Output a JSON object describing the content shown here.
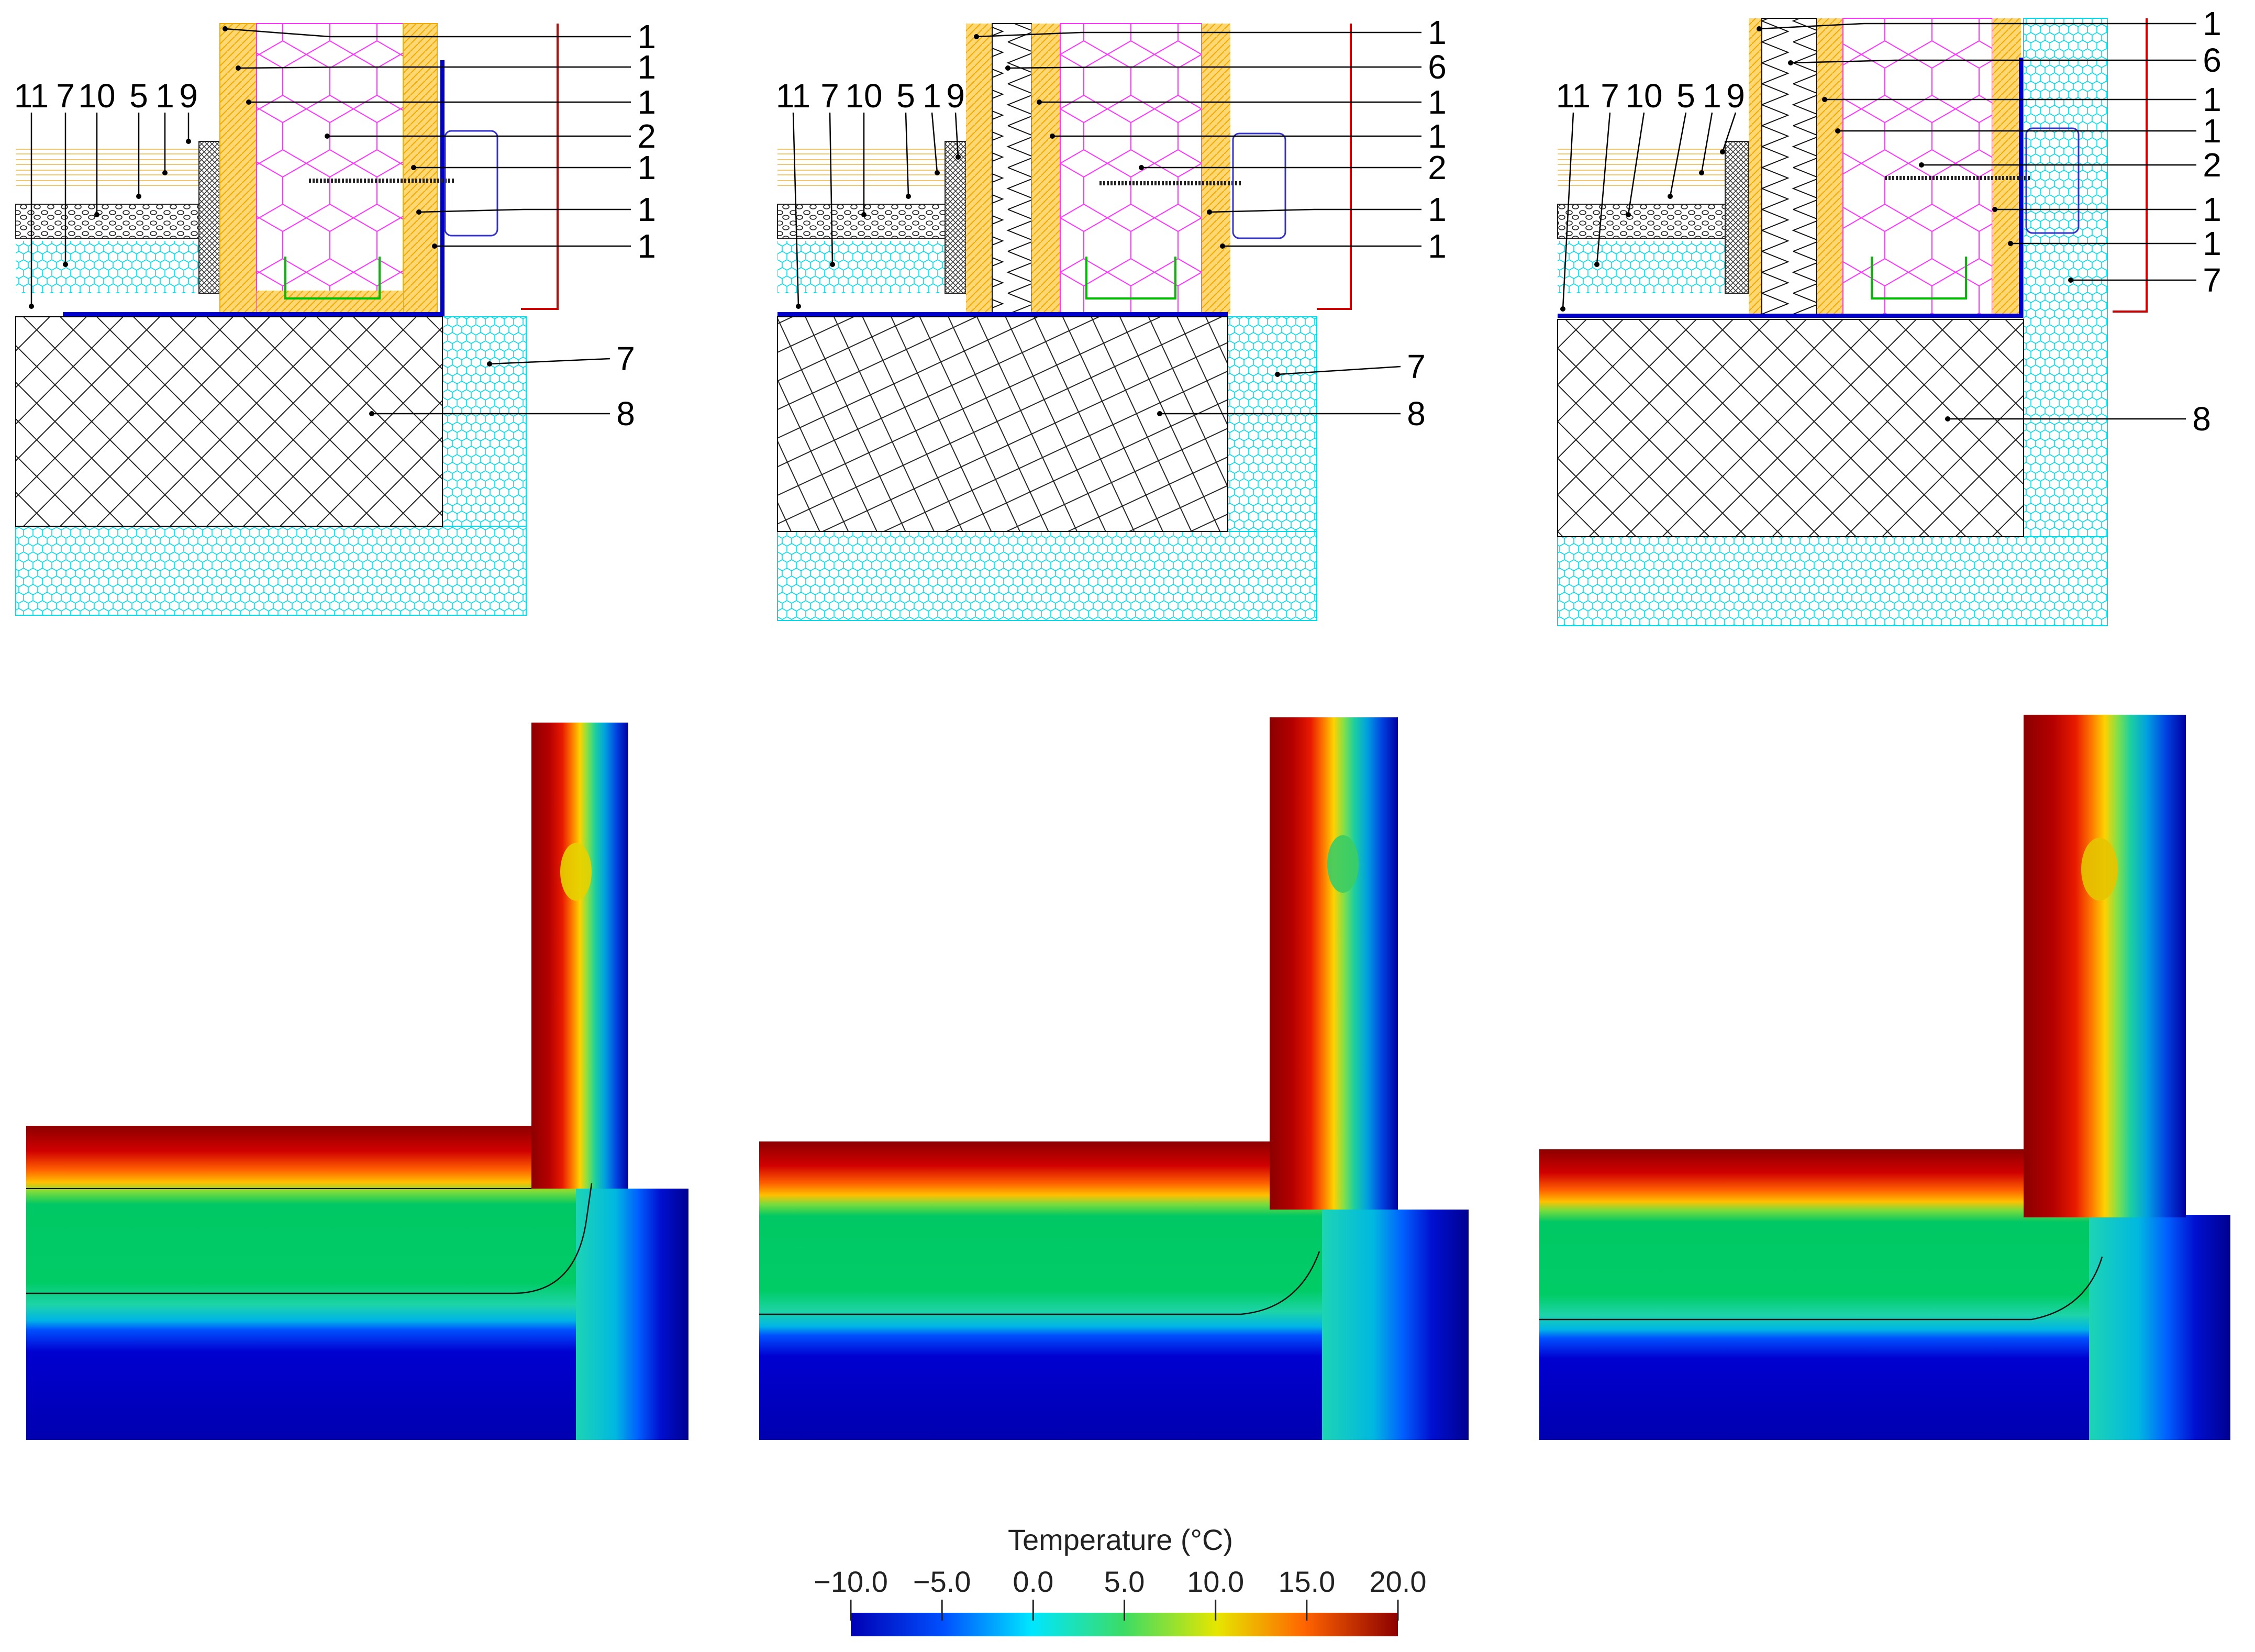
{
  "panels": [
    {
      "id": "a",
      "callouts_top": [
        "11",
        "7",
        "10",
        "5",
        "1",
        "9"
      ],
      "callouts_right": [
        "1",
        "1",
        "1",
        "2",
        "1",
        "1",
        "1"
      ],
      "callouts_lower": [
        "7",
        "8"
      ]
    },
    {
      "id": "b",
      "callouts_top": [
        "11",
        "7",
        "10",
        "5",
        "1",
        "9"
      ],
      "callouts_right": [
        "1",
        "6",
        "1",
        "1",
        "2",
        "1",
        "1"
      ],
      "callouts_lower": [
        "7",
        "8"
      ]
    },
    {
      "id": "c",
      "callouts_top": [
        "11",
        "7",
        "10",
        "5",
        "1",
        "9"
      ],
      "callouts_right": [
        "1",
        "6",
        "1",
        "1",
        "2",
        "1",
        "1",
        "7"
      ],
      "callouts_lower": [
        "8"
      ]
    }
  ],
  "colorbar": {
    "title": "Temperature (°C)",
    "min": -10.0,
    "max": 20.0,
    "tick_labels": [
      "−10.0",
      "−5.0",
      "0.0",
      "5.0",
      "10.0",
      "15.0",
      "20.0"
    ],
    "colormap": [
      "#0000b4",
      "#0050ff",
      "#00e6ff",
      "#3cdc64",
      "#e6e600",
      "#ff6400",
      "#8c0000"
    ]
  },
  "colors": {
    "insulation_hatch": "#00e5ee",
    "rockwool_hatch": "#ff00ff",
    "board_hatch": "#f5b800",
    "membrane": "#0000cc",
    "bracket": "#3333cc",
    "profile": "#00bb00",
    "edge_flashing": "#cc0000",
    "concrete_hatch": "#000000"
  }
}
